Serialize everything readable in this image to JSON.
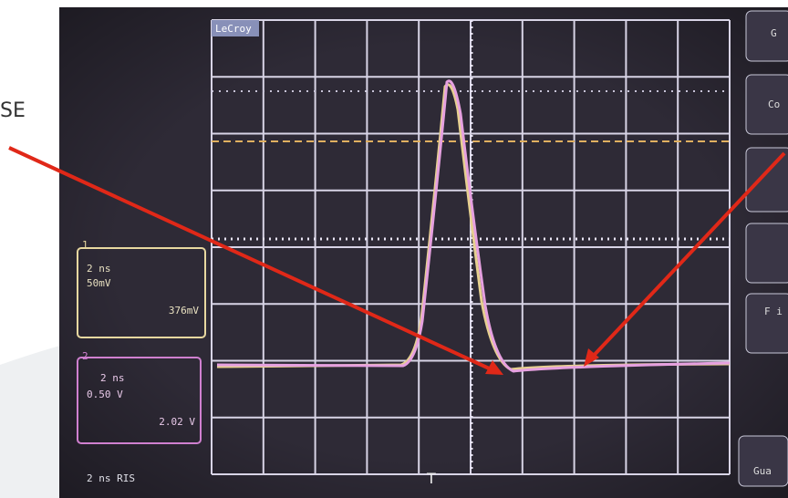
{
  "annotation": "SE",
  "screen": {
    "brand": "LeCroy",
    "channels": [
      {
        "number": "1",
        "timebase": "2 ns",
        "scale": "50mV",
        "offset": "376mV"
      },
      {
        "number": "2",
        "timebase": "2 ns",
        "scale": "0.50 V",
        "offset": "2.02 V"
      }
    ],
    "status": "2 ns RIS",
    "buttons": [
      "G",
      "Co",
      "F i",
      "Gua"
    ]
  }
}
